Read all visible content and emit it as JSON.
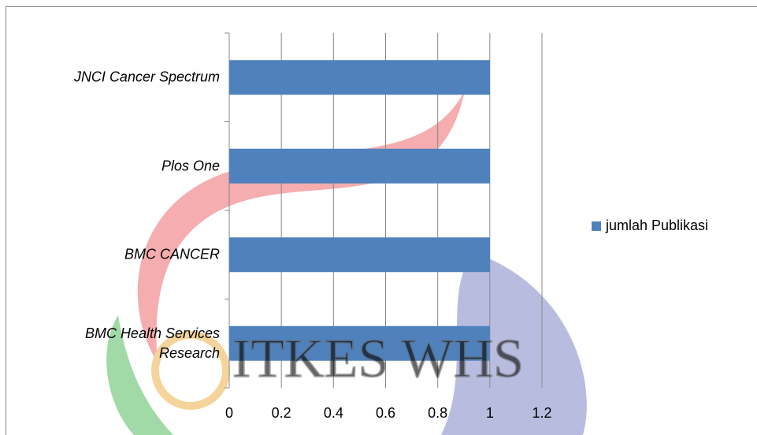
{
  "chart_data": {
    "type": "bar",
    "orientation": "horizontal",
    "categories": [
      "JNCI Cancer Spectrum",
      "Plos One",
      "BMC CANCER",
      "BMC Health Services Research"
    ],
    "series": [
      {
        "name": "jumlah Publikasi",
        "color": "#4f81bd",
        "values": [
          1,
          1,
          1,
          1
        ]
      }
    ],
    "xlim": [
      0,
      1.2
    ],
    "xticks": [
      0,
      0.2,
      0.4,
      0.6,
      0.8,
      1,
      1.2
    ],
    "grid": true,
    "legend": "right",
    "watermark": "ITKES WHS"
  }
}
